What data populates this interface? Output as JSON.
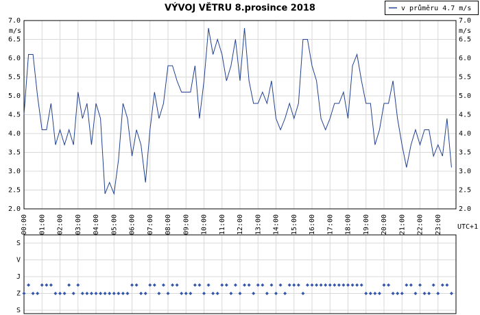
{
  "chart_data": [
    {
      "type": "line",
      "title": "VÝVOJ VĚTRU  8.prosince 2018",
      "y_label": "m/s",
      "x_label": "UTC+1",
      "grid": true,
      "x": [
        0,
        0.25,
        0.5,
        0.75,
        1,
        1.25,
        1.5,
        1.75,
        2,
        2.25,
        2.5,
        2.75,
        3,
        3.25,
        3.5,
        3.75,
        4,
        4.25,
        4.5,
        4.75,
        5,
        5.25,
        5.5,
        5.75,
        6,
        6.25,
        6.5,
        6.75,
        7,
        7.25,
        7.5,
        7.75,
        8,
        8.25,
        8.5,
        8.75,
        9,
        9.25,
        9.5,
        9.75,
        10,
        10.25,
        10.5,
        10.75,
        11,
        11.25,
        11.5,
        11.75,
        12,
        12.25,
        12.5,
        12.75,
        13,
        13.25,
        13.5,
        13.75,
        14,
        14.25,
        14.5,
        14.75,
        15,
        15.25,
        15.5,
        15.75,
        16,
        16.25,
        16.5,
        16.75,
        17,
        17.25,
        17.5,
        17.75,
        18,
        18.25,
        18.5,
        18.75,
        19,
        19.25,
        19.5,
        19.75,
        20,
        20.25,
        20.5,
        20.75,
        21,
        21.25,
        21.5,
        21.75,
        22,
        22.25,
        22.5,
        22.75,
        23,
        23.25,
        23.5,
        23.75
      ],
      "series": [
        {
          "name": "v průměru 4.7 m/s",
          "color": "#1f3f8f",
          "values": [
            4.5,
            6.1,
            6.1,
            5.0,
            4.1,
            4.1,
            4.8,
            3.7,
            4.1,
            3.7,
            4.1,
            3.7,
            5.1,
            4.4,
            4.8,
            3.7,
            4.8,
            4.4,
            2.4,
            2.7,
            2.4,
            3.3,
            4.8,
            4.4,
            3.4,
            4.1,
            3.7,
            2.7,
            4.1,
            5.1,
            4.4,
            4.8,
            5.8,
            5.8,
            5.4,
            5.1,
            5.1,
            5.1,
            5.8,
            4.4,
            5.4,
            6.8,
            6.1,
            6.5,
            6.1,
            5.4,
            5.8,
            6.5,
            5.4,
            6.8,
            5.4,
            4.8,
            4.8,
            5.1,
            4.8,
            5.4,
            4.4,
            4.1,
            4.4,
            4.8,
            4.4,
            4.8,
            6.5,
            6.5,
            5.8,
            5.4,
            4.4,
            4.1,
            4.4,
            4.8,
            4.8,
            5.1,
            4.4,
            5.8,
            6.1,
            5.4,
            4.8,
            4.8,
            3.7,
            4.1,
            4.8,
            4.8,
            5.4,
            4.4,
            3.7,
            3.1,
            3.7,
            4.1,
            3.7,
            4.1,
            4.1,
            3.4,
            3.7,
            3.4,
            4.4,
            3.1
          ]
        }
      ],
      "xlim": [
        0,
        24
      ],
      "xticks": [
        {
          "value": 0,
          "label": "00:00"
        },
        {
          "value": 1,
          "label": "01:00"
        },
        {
          "value": 2,
          "label": "02:00"
        },
        {
          "value": 3,
          "label": "03:00"
        },
        {
          "value": 4,
          "label": "04:00"
        },
        {
          "value": 5,
          "label": "05:00"
        },
        {
          "value": 6,
          "label": "06:00"
        },
        {
          "value": 7,
          "label": "07:00"
        },
        {
          "value": 8,
          "label": "08:00"
        },
        {
          "value": 9,
          "label": "09:00"
        },
        {
          "value": 10,
          "label": "10:00"
        },
        {
          "value": 11,
          "label": "11:00"
        },
        {
          "value": 12,
          "label": "12:00"
        },
        {
          "value": 13,
          "label": "13:00"
        },
        {
          "value": 14,
          "label": "14:00"
        },
        {
          "value": 15,
          "label": "15:00"
        },
        {
          "value": 16,
          "label": "16:00"
        },
        {
          "value": 17,
          "label": "17:00"
        },
        {
          "value": 18,
          "label": "18:00"
        },
        {
          "value": 19,
          "label": "19:00"
        },
        {
          "value": 20,
          "label": "20:00"
        },
        {
          "value": 21,
          "label": "21:00"
        },
        {
          "value": 22,
          "label": "22:00"
        },
        {
          "value": 23,
          "label": "23:00"
        }
      ],
      "ylim": [
        2,
        7
      ],
      "yticks": [
        {
          "value": 2,
          "label": "2.0"
        },
        {
          "value": 2.5,
          "label": "2.5"
        },
        {
          "value": 3,
          "label": "3.0"
        },
        {
          "value": 3.5,
          "label": "3.5"
        },
        {
          "value": 4,
          "label": "4.0"
        },
        {
          "value": 4.5,
          "label": "4.5"
        },
        {
          "value": 5,
          "label": "5.0"
        },
        {
          "value": 5.5,
          "label": "5.5"
        },
        {
          "value": 6,
          "label": "6.0"
        },
        {
          "value": 6.5,
          "label": "6.5"
        },
        {
          "value": 7,
          "label": "7.0"
        }
      ]
    },
    {
      "type": "scatter",
      "grid": true,
      "color": "#3355aa",
      "x": [
        0,
        0.25,
        0.5,
        0.75,
        1,
        1.25,
        1.5,
        1.75,
        2,
        2.25,
        2.5,
        2.75,
        3,
        3.25,
        3.5,
        3.75,
        4,
        4.25,
        4.5,
        4.75,
        5,
        5.25,
        5.5,
        5.75,
        6,
        6.25,
        6.5,
        6.75,
        7,
        7.25,
        7.5,
        7.75,
        8,
        8.25,
        8.5,
        8.75,
        9,
        9.25,
        9.5,
        9.75,
        10,
        10.25,
        10.5,
        10.75,
        11,
        11.25,
        11.5,
        11.75,
        12,
        12.25,
        12.5,
        12.75,
        13,
        13.25,
        13.5,
        13.75,
        14,
        14.25,
        14.5,
        14.75,
        15,
        15.25,
        15.5,
        15.75,
        16,
        16.25,
        16.5,
        16.75,
        17,
        17.25,
        17.5,
        17.75,
        18,
        18.25,
        18.5,
        18.75,
        19,
        19.25,
        19.5,
        19.75,
        20,
        20.25,
        20.5,
        20.75,
        21,
        21.25,
        21.5,
        21.75,
        22,
        22.25,
        22.5,
        22.75,
        23,
        23.25,
        23.5,
        23.75
      ],
      "values": [
        270,
        225,
        270,
        270,
        225,
        225,
        225,
        270,
        270,
        270,
        225,
        270,
        225,
        270,
        270,
        270,
        270,
        270,
        270,
        270,
        270,
        270,
        270,
        270,
        225,
        225,
        270,
        270,
        225,
        225,
        270,
        225,
        270,
        225,
        225,
        270,
        270,
        270,
        225,
        225,
        270,
        225,
        270,
        270,
        225,
        225,
        270,
        225,
        270,
        225,
        225,
        270,
        225,
        225,
        270,
        225,
        270,
        225,
        270,
        225,
        225,
        225,
        270,
        225,
        225,
        225,
        225,
        225,
        225,
        225,
        225,
        225,
        225,
        225,
        225,
        225,
        270,
        270,
        270,
        270,
        225,
        225,
        270,
        270,
        270,
        225,
        225,
        270,
        225,
        270,
        270,
        225,
        270,
        225,
        225,
        270
      ],
      "xlim": [
        0,
        24
      ],
      "ylim": [
        0,
        360
      ],
      "yticks": [
        {
          "value": 0,
          "label": "S"
        },
        {
          "value": 90,
          "label": "V"
        },
        {
          "value": 180,
          "label": "J"
        },
        {
          "value": 270,
          "label": "Z"
        },
        {
          "value": 360,
          "label": "S"
        }
      ]
    }
  ]
}
